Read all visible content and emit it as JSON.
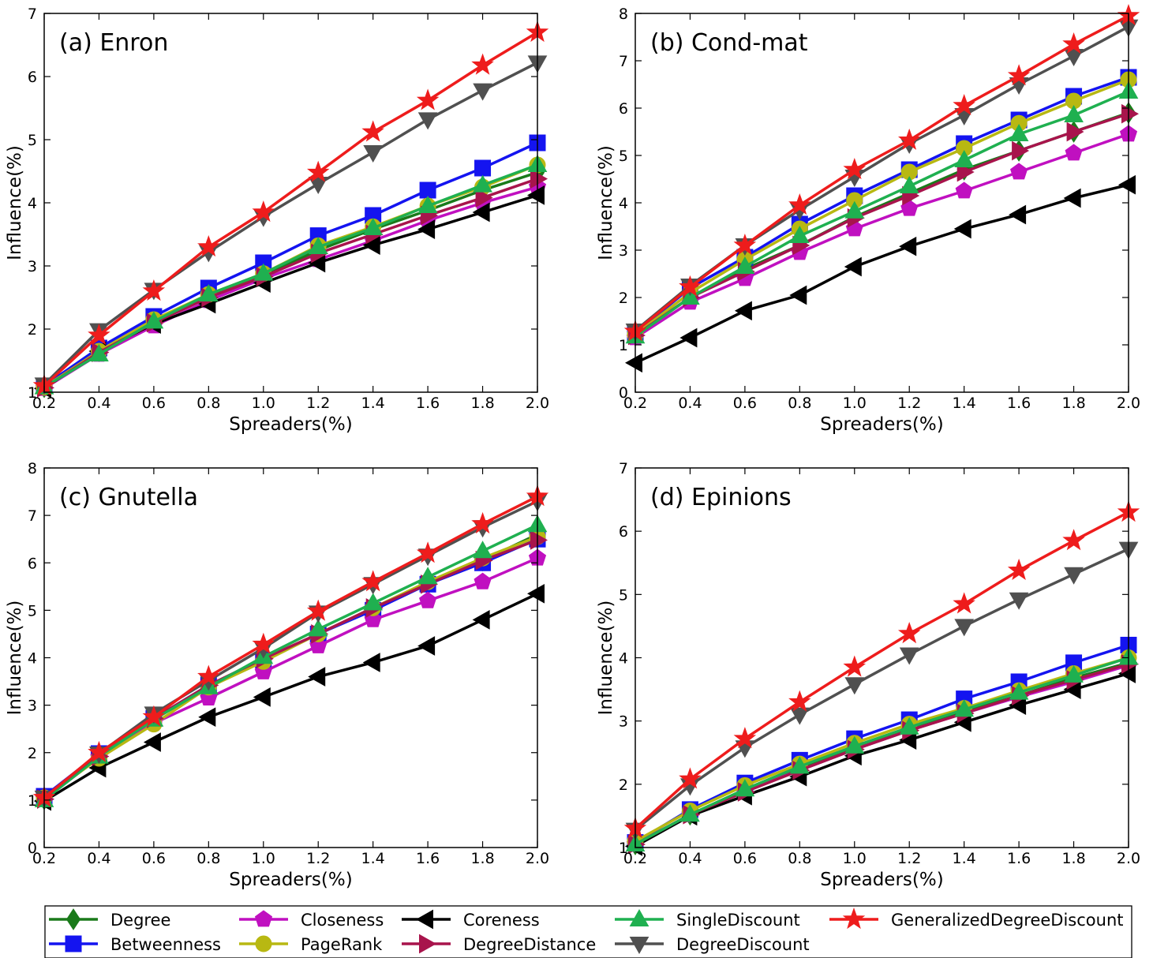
{
  "colors": {
    "Degree": "#1a7a1a",
    "Betweenness": "#1414f0",
    "Closeness": "#c010c0",
    "Coreness": "#000000",
    "PageRank": "#b8b812",
    "DegreeDistance": "#a8144c",
    "SingleDiscount": "#1fb050",
    "DegreeDiscount": "#505050",
    "GeneralizedDegreeDiscount": "#ee1c1c"
  },
  "markers": {
    "Degree": "diamond",
    "Betweenness": "square",
    "Closeness": "pentagon",
    "Coreness": "triangle-left",
    "PageRank": "circle",
    "DegreeDistance": "triangle-right",
    "SingleDiscount": "triangle-up",
    "DegreeDiscount": "triangle-down",
    "GeneralizedDegreeDiscount": "star"
  },
  "legend": {
    "placement": "bottom",
    "entries": [
      "Degree",
      "Closeness",
      "Coreness",
      "SingleDiscount",
      "GeneralizedDegreeDiscount",
      "Betweenness",
      "PageRank",
      "DegreeDistance",
      "DegreeDiscount"
    ]
  },
  "chart_data": [
    {
      "type": "line",
      "title": "(a) Enron",
      "xlabel": "Spreaders(%)",
      "ylabel": "Influence(%)",
      "xlim": [
        0.2,
        2.0
      ],
      "ylim": [
        1,
        7
      ],
      "xticks": [
        "0.2",
        "0.4",
        "0.6",
        "0.8",
        "1.0",
        "1.2",
        "1.4",
        "1.6",
        "1.8",
        "2.0"
      ],
      "yticks": [
        "1",
        "2",
        "3",
        "4",
        "5",
        "6",
        "7"
      ],
      "x": [
        0.2,
        0.4,
        0.6,
        0.8,
        1.0,
        1.2,
        1.4,
        1.6,
        1.8,
        2.0
      ],
      "series": [
        {
          "name": "Degree",
          "values": [
            1.08,
            1.65,
            2.12,
            2.52,
            2.85,
            3.25,
            3.58,
            3.88,
            4.2,
            4.48
          ]
        },
        {
          "name": "Betweenness",
          "values": [
            1.1,
            1.7,
            2.2,
            2.65,
            3.05,
            3.48,
            3.8,
            4.2,
            4.55,
            4.95
          ]
        },
        {
          "name": "Closeness",
          "values": [
            1.06,
            1.6,
            2.05,
            2.45,
            2.8,
            3.1,
            3.4,
            3.72,
            4.0,
            4.25
          ]
        },
        {
          "name": "Coreness",
          "values": [
            1.06,
            1.65,
            2.08,
            2.4,
            2.73,
            3.05,
            3.33,
            3.58,
            3.85,
            4.12
          ]
        },
        {
          "name": "PageRank",
          "values": [
            1.08,
            1.65,
            2.15,
            2.55,
            2.88,
            3.32,
            3.62,
            3.95,
            4.25,
            4.6
          ]
        },
        {
          "name": "DegreeDistance",
          "values": [
            1.07,
            1.63,
            2.1,
            2.5,
            2.83,
            3.2,
            3.5,
            3.8,
            4.08,
            4.38
          ]
        },
        {
          "name": "SingleDiscount",
          "values": [
            1.08,
            1.6,
            2.12,
            2.55,
            2.88,
            3.3,
            3.6,
            3.95,
            4.28,
            4.6
          ]
        },
        {
          "name": "DegreeDiscount",
          "values": [
            1.12,
            1.98,
            2.62,
            3.22,
            3.78,
            4.3,
            4.8,
            5.32,
            5.78,
            6.22
          ]
        },
        {
          "name": "GeneralizedDegreeDiscount",
          "values": [
            1.1,
            1.9,
            2.6,
            3.3,
            3.85,
            4.48,
            5.12,
            5.62,
            6.18,
            6.7
          ]
        }
      ]
    },
    {
      "type": "line",
      "title": "(b) Cond-mat",
      "xlabel": "Spreaders(%)",
      "ylabel": "Influence(%)",
      "xlim": [
        0.2,
        2.0
      ],
      "ylim": [
        0,
        8
      ],
      "xticks": [
        "0.2",
        "0.4",
        "0.6",
        "0.8",
        "1.0",
        "1.2",
        "1.4",
        "1.6",
        "1.8",
        "2.0"
      ],
      "yticks": [
        "0",
        "1",
        "2",
        "3",
        "4",
        "5",
        "6",
        "7",
        "8"
      ],
      "x": [
        0.2,
        0.4,
        0.6,
        0.8,
        1.0,
        1.2,
        1.4,
        1.6,
        1.8,
        2.0
      ],
      "series": [
        {
          "name": "Degree",
          "values": [
            1.2,
            2.0,
            2.6,
            3.1,
            3.7,
            4.2,
            4.7,
            5.1,
            5.5,
            5.9
          ]
        },
        {
          "name": "Betweenness",
          "values": [
            1.25,
            2.2,
            2.85,
            3.55,
            4.15,
            4.7,
            5.25,
            5.75,
            6.25,
            6.65
          ]
        },
        {
          "name": "Closeness",
          "values": [
            1.15,
            1.9,
            2.4,
            2.95,
            3.45,
            3.88,
            4.25,
            4.65,
            5.05,
            5.45
          ]
        },
        {
          "name": "Coreness",
          "values": [
            0.62,
            1.15,
            1.72,
            2.05,
            2.65,
            3.08,
            3.45,
            3.75,
            4.1,
            4.38
          ]
        },
        {
          "name": "PageRank",
          "values": [
            1.22,
            2.1,
            2.8,
            3.45,
            4.05,
            4.65,
            5.15,
            5.68,
            6.15,
            6.6
          ]
        },
        {
          "name": "DegreeDistance",
          "values": [
            1.2,
            2.0,
            2.55,
            3.1,
            3.68,
            4.15,
            4.65,
            5.1,
            5.5,
            5.88
          ]
        },
        {
          "name": "SingleDiscount",
          "values": [
            1.18,
            2.0,
            2.65,
            3.3,
            3.82,
            4.35,
            4.9,
            5.45,
            5.85,
            6.35
          ]
        },
        {
          "name": "DegreeDiscount",
          "values": [
            1.3,
            2.25,
            3.1,
            3.85,
            4.55,
            5.25,
            5.85,
            6.5,
            7.1,
            7.72
          ]
        },
        {
          "name": "GeneralizedDegreeDiscount",
          "values": [
            1.28,
            2.22,
            3.1,
            3.95,
            4.7,
            5.32,
            6.05,
            6.68,
            7.35,
            7.95
          ]
        }
      ]
    },
    {
      "type": "line",
      "title": "(c) Gnutella",
      "xlabel": "Spreaders(%)",
      "ylabel": "Influence(%)",
      "xlim": [
        0.2,
        2.0
      ],
      "ylim": [
        0,
        8
      ],
      "xticks": [
        "0.2",
        "0.4",
        "0.6",
        "0.8",
        "1.0",
        "1.2",
        "1.4",
        "1.6",
        "1.8",
        "2.0"
      ],
      "yticks": [
        "0",
        "1",
        "2",
        "3",
        "4",
        "5",
        "6",
        "7",
        "8"
      ],
      "x": [
        0.2,
        0.4,
        0.6,
        0.8,
        1.0,
        1.2,
        1.4,
        1.6,
        1.8,
        2.0
      ],
      "series": [
        {
          "name": "Degree",
          "values": [
            1.02,
            1.9,
            2.7,
            3.4,
            3.95,
            4.5,
            5.05,
            5.55,
            6.05,
            6.6
          ]
        },
        {
          "name": "Betweenness",
          "values": [
            1.08,
            1.98,
            2.72,
            3.42,
            3.95,
            4.5,
            5.0,
            5.55,
            6.0,
            6.5
          ]
        },
        {
          "name": "Closeness",
          "values": [
            1.02,
            1.9,
            2.62,
            3.15,
            3.7,
            4.25,
            4.8,
            5.2,
            5.6,
            6.1
          ]
        },
        {
          "name": "Coreness",
          "values": [
            0.98,
            1.68,
            2.22,
            2.75,
            3.17,
            3.6,
            3.9,
            4.25,
            4.8,
            5.35
          ]
        },
        {
          "name": "PageRank",
          "values": [
            1.05,
            1.88,
            2.6,
            3.38,
            3.92,
            4.5,
            5.05,
            5.6,
            6.1,
            6.55
          ]
        },
        {
          "name": "DegreeDistance",
          "values": [
            1.02,
            1.92,
            2.72,
            3.42,
            3.98,
            4.5,
            5.05,
            5.55,
            6.05,
            6.48
          ]
        },
        {
          "name": "SingleDiscount",
          "values": [
            1.0,
            1.92,
            2.7,
            3.38,
            4.02,
            4.6,
            5.15,
            5.7,
            6.25,
            6.8
          ]
        },
        {
          "name": "DegreeDiscount",
          "values": [
            1.05,
            1.98,
            2.82,
            3.52,
            4.2,
            4.95,
            5.55,
            6.15,
            6.75,
            7.3
          ]
        },
        {
          "name": "GeneralizedDegreeDiscount",
          "values": [
            1.05,
            2.0,
            2.75,
            3.6,
            4.28,
            4.98,
            5.6,
            6.2,
            6.82,
            7.4
          ]
        }
      ]
    },
    {
      "type": "line",
      "title": "(d) Epinions",
      "xlabel": "Spreaders(%)",
      "ylabel": "Influence(%)",
      "xlim": [
        0.2,
        2.0
      ],
      "ylim": [
        1,
        7
      ],
      "xticks": [
        "0.2",
        "0.4",
        "0.6",
        "0.8",
        "1.0",
        "1.2",
        "1.4",
        "1.6",
        "1.8",
        "2.0"
      ],
      "yticks": [
        "1",
        "2",
        "3",
        "4",
        "5",
        "6",
        "7"
      ],
      "x": [
        0.2,
        0.4,
        0.6,
        0.8,
        1.0,
        1.2,
        1.4,
        1.6,
        1.8,
        2.0
      ],
      "series": [
        {
          "name": "Degree",
          "values": [
            1.05,
            1.52,
            1.9,
            2.25,
            2.6,
            2.88,
            3.15,
            3.4,
            3.68,
            3.92
          ]
        },
        {
          "name": "Betweenness",
          "values": [
            1.08,
            1.6,
            2.02,
            2.38,
            2.72,
            3.02,
            3.35,
            3.62,
            3.92,
            4.2
          ]
        },
        {
          "name": "Closeness",
          "values": [
            1.05,
            1.52,
            1.9,
            2.22,
            2.55,
            2.85,
            3.12,
            3.38,
            3.62,
            3.88
          ]
        },
        {
          "name": "Coreness",
          "values": [
            1.02,
            1.5,
            1.82,
            2.12,
            2.45,
            2.7,
            2.98,
            3.25,
            3.5,
            3.75
          ]
        },
        {
          "name": "PageRank",
          "values": [
            1.1,
            1.58,
            1.98,
            2.32,
            2.65,
            2.95,
            3.2,
            3.48,
            3.75,
            4.0
          ]
        },
        {
          "name": "DegreeDistance",
          "values": [
            1.05,
            1.52,
            1.88,
            2.22,
            2.55,
            2.85,
            3.12,
            3.4,
            3.65,
            3.9
          ]
        },
        {
          "name": "SingleDiscount",
          "values": [
            1.05,
            1.52,
            1.92,
            2.28,
            2.6,
            2.9,
            3.18,
            3.45,
            3.72,
            4.0
          ]
        },
        {
          "name": "DegreeDiscount",
          "values": [
            1.28,
            1.98,
            2.58,
            3.1,
            3.58,
            4.05,
            4.5,
            4.92,
            5.32,
            5.72
          ]
        },
        {
          "name": "GeneralizedDegreeDiscount",
          "values": [
            1.3,
            2.08,
            2.72,
            3.3,
            3.85,
            4.38,
            4.85,
            5.38,
            5.85,
            6.3
          ]
        }
      ]
    }
  ]
}
